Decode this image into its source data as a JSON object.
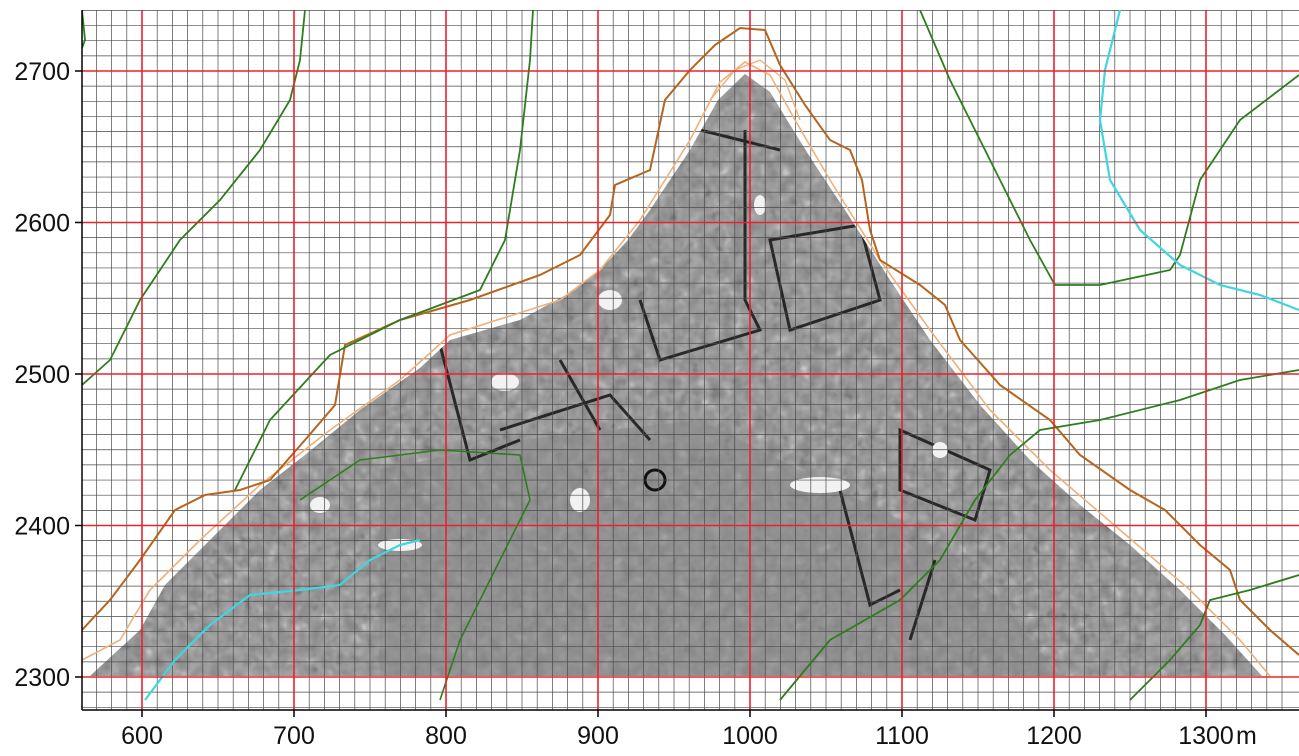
{
  "map": {
    "x_axis": {
      "ticks": [
        600,
        700,
        800,
        900,
        1000,
        1100,
        1200,
        1300
      ],
      "labels": [
        "600",
        "700",
        "800",
        "900",
        "1000",
        "1100",
        "1200",
        "1300"
      ],
      "unit_label": "m",
      "range": [
        560,
        1355
      ]
    },
    "y_axis": {
      "ticks": [
        2300,
        2400,
        2500,
        2600,
        2700
      ],
      "labels": [
        "2300",
        "2400",
        "2500",
        "2600",
        "2700"
      ],
      "range": [
        2280,
        2740
      ]
    },
    "grid": {
      "major_spacing_m": 100,
      "minor_spacing_x_m": 10,
      "minor_spacing_y_m": 10,
      "major_color": "#e8232b",
      "minor_color": "#4a4a4a"
    },
    "colors": {
      "survey_fill": "#7c7c7c",
      "survey_texture": "#1a1a1a",
      "contour_brown": "#b5651d",
      "contour_light": "#f0b07a",
      "contour_green": "#2e7d1e",
      "river_cyan": "#3fd6e0"
    },
    "survey_area": "triangular magnetometer survey"
  }
}
